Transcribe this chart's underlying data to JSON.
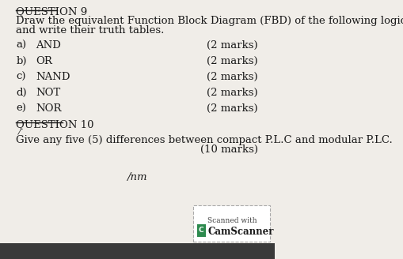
{
  "bg_color": "#f0ede8",
  "header_text": "QUESTION 9",
  "intro_line1": "Draw the equivalent Function Block Diagram (FBD) of the following logic gates",
  "intro_line2": "and write their truth tables.",
  "items": [
    {
      "label": "a)",
      "name": "AND",
      "marks": "(2 marks)"
    },
    {
      "label": "b)",
      "name": "OR",
      "marks": "(2 marks)"
    },
    {
      "label": "c)",
      "name": "NAND",
      "marks": "(2 marks)"
    },
    {
      "label": "d)",
      "name": "NOT",
      "marks": "(2 marks)"
    },
    {
      "label": "e)",
      "name": "NOR",
      "marks": "(2 marks)"
    }
  ],
  "question10_label": "QUESTION 10",
  "question10_tick": "/",
  "q10_line1": "Give any five (5) differences between compact P.L.C and modular P.LC.",
  "q10_marks": "(10 marks)",
  "footer_center": "/nm",
  "camscanner_text1": "Scanned with",
  "camscanner_text2": "CamScanner",
  "text_color": "#1a1a1a",
  "font_family": "serif",
  "font_size_body": 9.5,
  "bottom_bar_color": "#3a3a3a",
  "camscanner_box_color": "#ffffff",
  "camscanner_border_color": "#aaaaaa",
  "camscanner_icon_color": "#2d8a4e"
}
